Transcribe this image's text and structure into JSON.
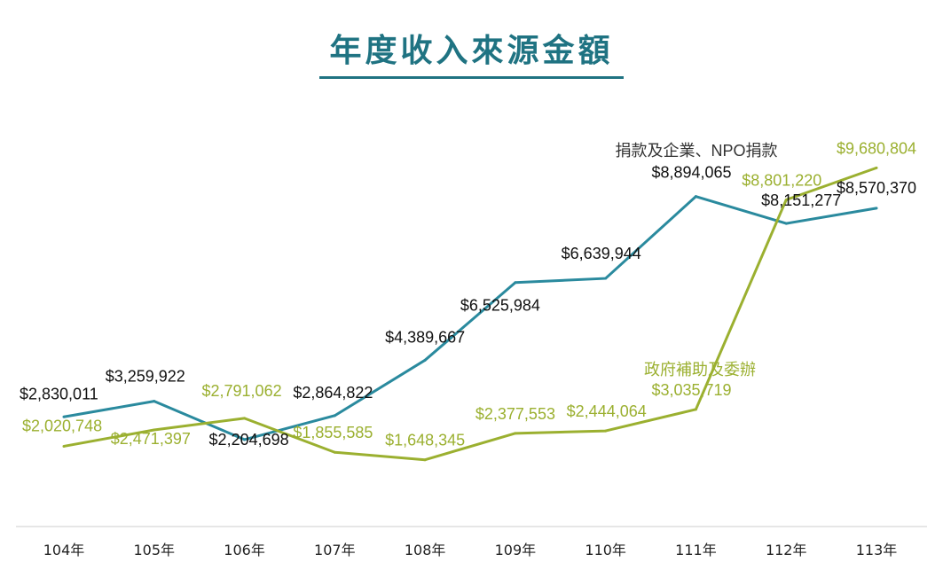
{
  "title": "年度收入來源金額",
  "chart_data": {
    "type": "line",
    "title": "年度收入來源金額",
    "xlabel": "",
    "ylabel": "",
    "categories": [
      "104年",
      "105年",
      "106年",
      "107年",
      "108年",
      "109年",
      "110年",
      "111年",
      "112年",
      "113年"
    ],
    "series": [
      {
        "name": "捐款及企業、NPO捐款",
        "color": "#2a8a9e",
        "label_color": "#111111",
        "values": [
          2830011,
          3259922,
          2204698,
          2864822,
          4389667,
          6525984,
          6639944,
          8894065,
          8151277,
          8570370
        ],
        "labels": [
          "$2,830,011",
          "$3,259,922",
          "$2,204,698",
          "$2,864,822",
          "$4,389,667",
          "$6,525,984",
          "$6,639,944",
          "$8,894,065",
          "$8,151,277",
          "$8,570,370"
        ]
      },
      {
        "name": "政府補助及委辦",
        "color": "#9bb030",
        "label_color": "#9bb030",
        "values": [
          2020748,
          2471397,
          2791062,
          1855585,
          1648345,
          2377553,
          2444064,
          3035719,
          8801220,
          9680804
        ],
        "labels": [
          "$2,020,748",
          "$2,471,397",
          "$2,791,062",
          "$1,855,585",
          "$1,648,345",
          "$2,377,553",
          "$2,444,064",
          "$3,035,719",
          "$8,801,220",
          "$9,680,804"
        ]
      }
    ],
    "legend": "inline labels near series ends",
    "grid": false
  }
}
